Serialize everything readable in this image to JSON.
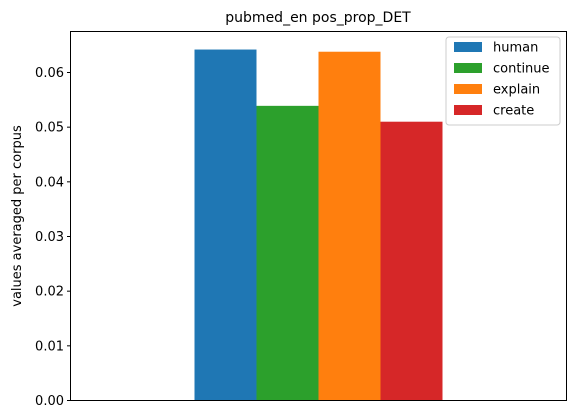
{
  "chart_data": {
    "type": "bar",
    "title": "pubmed_en pos_prop_DET",
    "xlabel": "",
    "ylabel": "values averaged per corpus",
    "ylim": [
      0,
      0.0675
    ],
    "yticks": [
      "0.00",
      "0.01",
      "0.02",
      "0.03",
      "0.04",
      "0.05",
      "0.06"
    ],
    "ytick_values": [
      0,
      0.01,
      0.02,
      0.03,
      0.04,
      0.05,
      0.06
    ],
    "grid": false,
    "legend_position": "top-right",
    "series": [
      {
        "name": "human",
        "value": 0.0642,
        "color": "#1f77b4"
      },
      {
        "name": "continue",
        "value": 0.0539,
        "color": "#2ca02c"
      },
      {
        "name": "explain",
        "value": 0.0638,
        "color": "#ff7f0e"
      },
      {
        "name": "create",
        "value": 0.051,
        "color": "#d62728"
      }
    ]
  }
}
